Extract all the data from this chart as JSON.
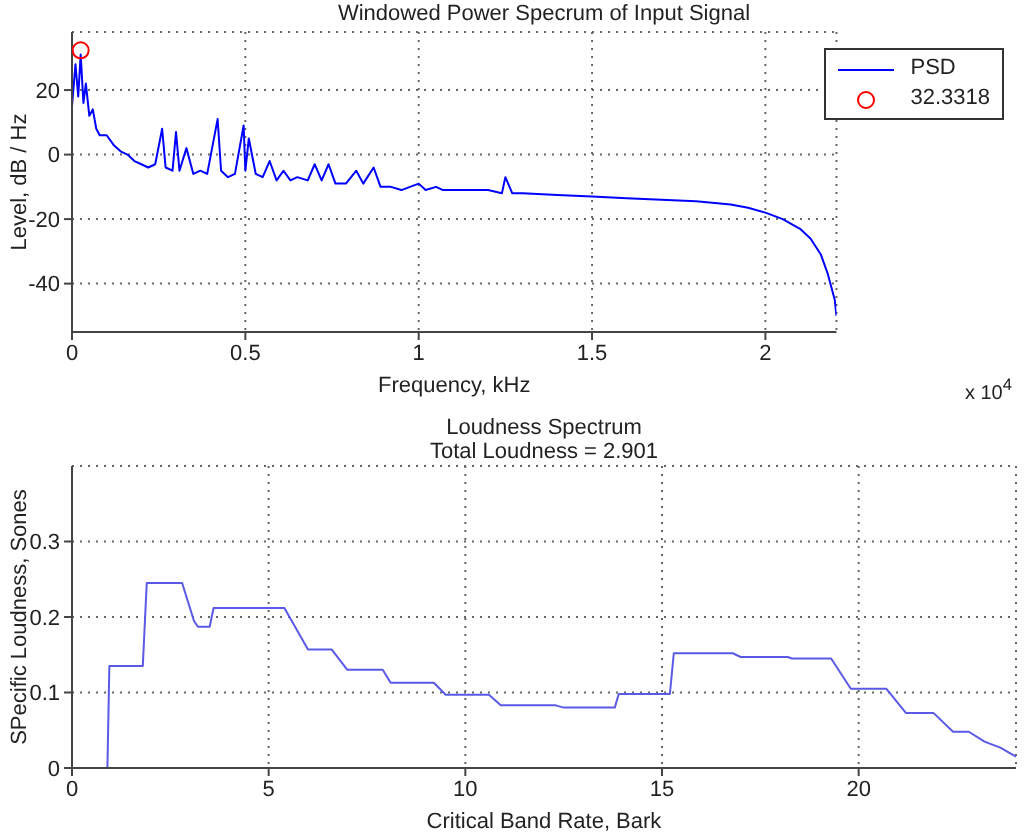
{
  "chart_data": [
    {
      "type": "line",
      "title": "Windowed Power Specrum of Input Signal",
      "xlabel": "Frequency, kHz",
      "ylabel": "Level, dB / Hz",
      "annotations": [
        "x 10$^{4}$"
      ],
      "xlim": [
        0,
        2.205
      ],
      "ylim": [
        -55,
        38
      ],
      "xticks": [
        0,
        0.5,
        1,
        1.5,
        2
      ],
      "yticks": [
        -40,
        -20,
        0,
        20
      ],
      "grid": true,
      "legend": "top right",
      "series": [
        {
          "name": "PSD",
          "color": "#0000ff",
          "x": [
            0,
            0.01,
            0.018,
            0.025,
            0.033,
            0.04,
            0.05,
            0.06,
            0.07,
            0.08,
            0.1,
            0.12,
            0.14,
            0.16,
            0.18,
            0.2,
            0.22,
            0.24,
            0.26,
            0.27,
            0.29,
            0.3,
            0.31,
            0.33,
            0.35,
            0.37,
            0.39,
            0.42,
            0.43,
            0.45,
            0.47,
            0.495,
            0.5,
            0.51,
            0.53,
            0.55,
            0.57,
            0.59,
            0.61,
            0.63,
            0.65,
            0.68,
            0.7,
            0.72,
            0.74,
            0.76,
            0.79,
            0.82,
            0.84,
            0.87,
            0.89,
            0.92,
            0.95,
            1,
            1.02,
            1.05,
            1.07,
            1.1,
            1.15,
            1.2,
            1.24,
            1.25,
            1.27,
            1.3,
            1.4,
            1.5,
            1.6,
            1.7,
            1.8,
            1.9,
            1.95,
            2,
            2.05,
            2.1,
            2.13,
            2.16,
            2.18,
            2.2,
            2.205
          ],
          "values": [
            15,
            28,
            18,
            31,
            16,
            22,
            12,
            14,
            8,
            6,
            6,
            3,
            1,
            0,
            -2,
            -3,
            -4,
            -3,
            8,
            -4,
            -5,
            7,
            -5,
            2,
            -6,
            -5,
            -6,
            11,
            -5,
            -7,
            -6,
            9,
            -5,
            5,
            -6,
            -7,
            -2,
            -8,
            -5,
            -8,
            -7,
            -8,
            -3,
            -8,
            -3,
            -9,
            -9,
            -5,
            -9,
            -4,
            -10,
            -10,
            -11,
            -9,
            -11,
            -10,
            -11,
            -11,
            -11,
            -11,
            -12,
            -7,
            -12,
            -12,
            -12.5,
            -13,
            -13.5,
            -14,
            -14.5,
            -15.5,
            -16.5,
            -18,
            -20,
            -23,
            -26,
            -31,
            -37,
            -45,
            -50
          ]
        },
        {
          "type": "scatter",
          "name": "32.3318",
          "color": "#ff0000",
          "marker": "circle",
          "x": [
            0.025
          ],
          "values": [
            32.3318
          ]
        }
      ]
    },
    {
      "type": "line",
      "title": "Loudness Spectrum",
      "subtitle": "Total Loudness = 2.901",
      "xlabel": "Critical Band Rate, Bark",
      "ylabel": "SPecific Loudness, Sones",
      "xlim": [
        0,
        24
      ],
      "ylim": [
        0,
        0.4
      ],
      "xticks": [
        0,
        5,
        10,
        15,
        20
      ],
      "yticks": [
        0,
        0.1,
        0.2,
        0.3
      ],
      "grid": true,
      "legend": false,
      "series": [
        {
          "color": "#5a5ae6",
          "x": [
            0.9,
            0.95,
            1.8,
            1.9,
            2.8,
            3.1,
            3.2,
            3.5,
            3.6,
            5.4,
            6.0,
            6.6,
            7.0,
            7.9,
            8.1,
            9.2,
            9.5,
            10.6,
            10.9,
            12.3,
            12.5,
            13.8,
            13.9,
            15.2,
            15.3,
            16.8,
            17.0,
            18.2,
            18.3,
            19.3,
            19.8,
            20.7,
            21.2,
            21.9,
            22.4,
            22.8,
            23.2,
            23.6,
            24
          ],
          "values": [
            0,
            0.135,
            0.135,
            0.245,
            0.245,
            0.195,
            0.187,
            0.187,
            0.212,
            0.212,
            0.157,
            0.157,
            0.13,
            0.13,
            0.113,
            0.113,
            0.097,
            0.097,
            0.083,
            0.083,
            0.08,
            0.08,
            0.098,
            0.098,
            0.152,
            0.152,
            0.147,
            0.147,
            0.145,
            0.145,
            0.105,
            0.105,
            0.073,
            0.073,
            0.048,
            0.048,
            0.035,
            0.027,
            0.015
          ]
        }
      ]
    }
  ]
}
